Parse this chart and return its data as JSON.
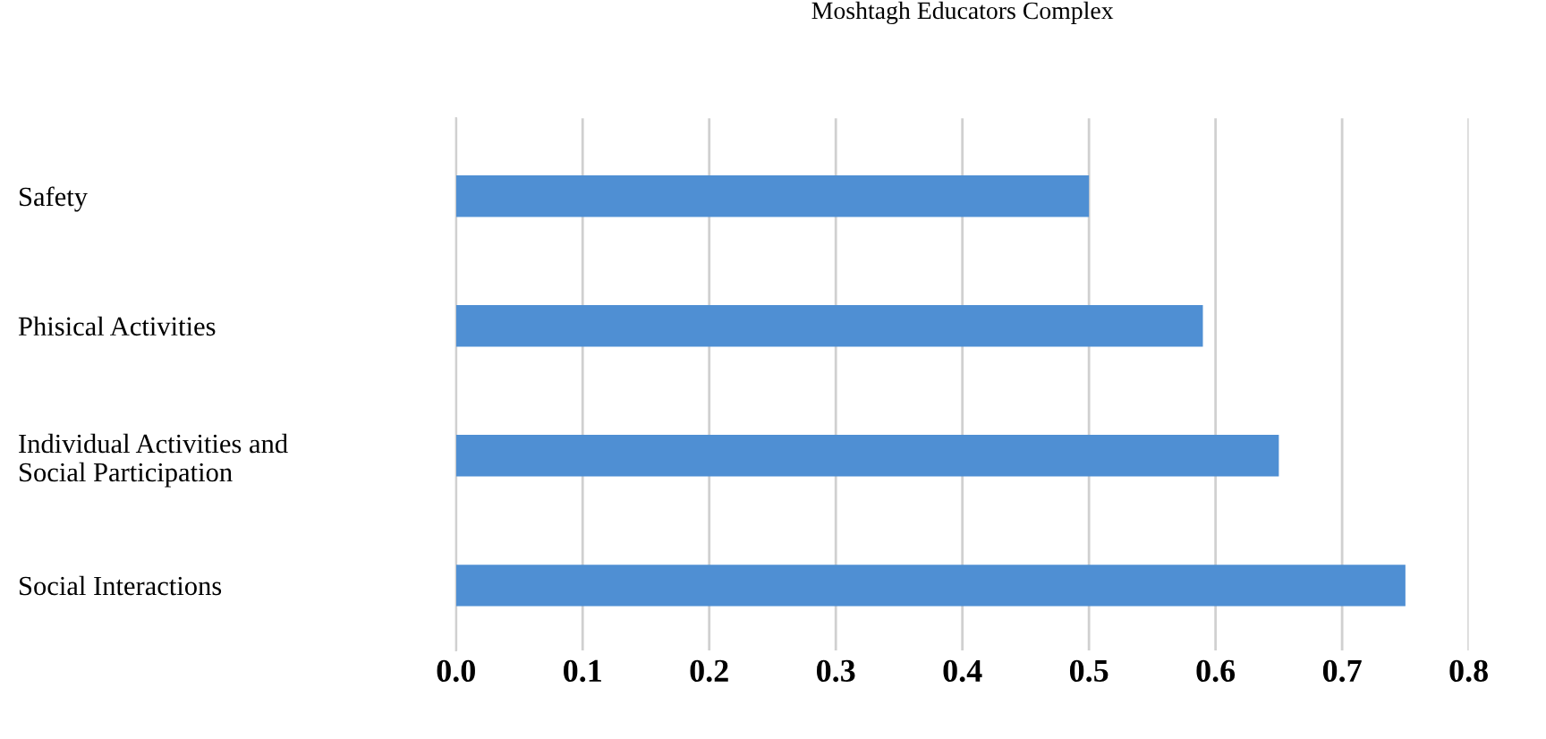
{
  "chart_data": {
    "type": "bar",
    "orientation": "horizontal",
    "title": "Moshtagh Educators Complex",
    "categories": [
      "Safety",
      "Phisical Activities",
      "Individual Activities and\nSocial Participation",
      "Social Interactions"
    ],
    "values": [
      0.5,
      0.59,
      0.65,
      0.75
    ],
    "color": "#4f8fd3",
    "xlim": [
      0,
      0.8
    ],
    "xticks": [
      {
        "value": 0,
        "label": "0.0"
      },
      0.1,
      0.2,
      0.3,
      0.4,
      0.5,
      0.6,
      0.7,
      0.8
    ],
    "grid": "x"
  }
}
